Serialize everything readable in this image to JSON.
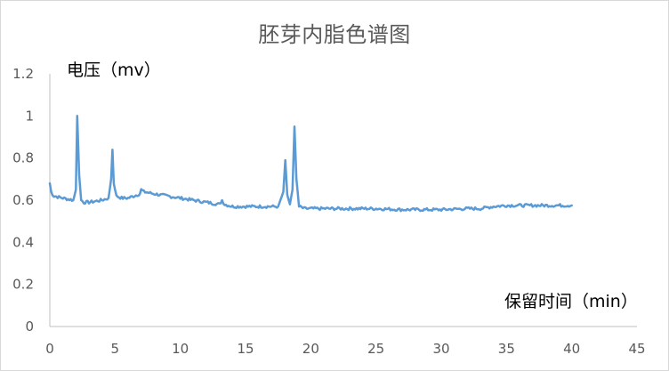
{
  "chart_data": {
    "type": "line",
    "title": "胚芽内脂色谱图",
    "xlabel": "保留时间（min）",
    "ylabel": "电压（mv）",
    "xlim": [
      0,
      45
    ],
    "ylim": [
      0,
      1.2
    ],
    "x_ticks": [
      "0",
      "5",
      "10",
      "15",
      "20",
      "25",
      "30",
      "35",
      "40",
      "45"
    ],
    "y_ticks": [
      "0",
      "0.2",
      "0.4",
      "0.6",
      "0.8",
      "1",
      "1.2"
    ],
    "grid": false,
    "legend": "none",
    "colors": {
      "line": "#5b9bd5",
      "axis": "#bfbfbf"
    },
    "series": [
      {
        "x": [
          0,
          0.1,
          0.3,
          1,
          1.8,
          2.0,
          2.1,
          2.25,
          2.4,
          2.6,
          3,
          4,
          4.5,
          4.7,
          4.8,
          4.9,
          5.1,
          5.5,
          6,
          6.9,
          7,
          7.2,
          8,
          10,
          12,
          13,
          13.2,
          13.4,
          14,
          16,
          17.5,
          17.9,
          18.05,
          18.2,
          18.4,
          18.6,
          18.75,
          18.9,
          19.1,
          19.5,
          22,
          25,
          27,
          30,
          32,
          33,
          34,
          35,
          36,
          38,
          40
        ],
        "values": [
          0.68,
          0.64,
          0.62,
          0.61,
          0.6,
          0.65,
          1.0,
          0.72,
          0.6,
          0.59,
          0.59,
          0.6,
          0.61,
          0.7,
          0.84,
          0.68,
          0.62,
          0.61,
          0.61,
          0.63,
          0.65,
          0.64,
          0.63,
          0.61,
          0.59,
          0.58,
          0.6,
          0.58,
          0.57,
          0.57,
          0.57,
          0.64,
          0.79,
          0.62,
          0.58,
          0.65,
          0.95,
          0.7,
          0.57,
          0.56,
          0.56,
          0.56,
          0.555,
          0.555,
          0.56,
          0.56,
          0.57,
          0.575,
          0.575,
          0.575,
          0.575
        ]
      }
    ]
  }
}
